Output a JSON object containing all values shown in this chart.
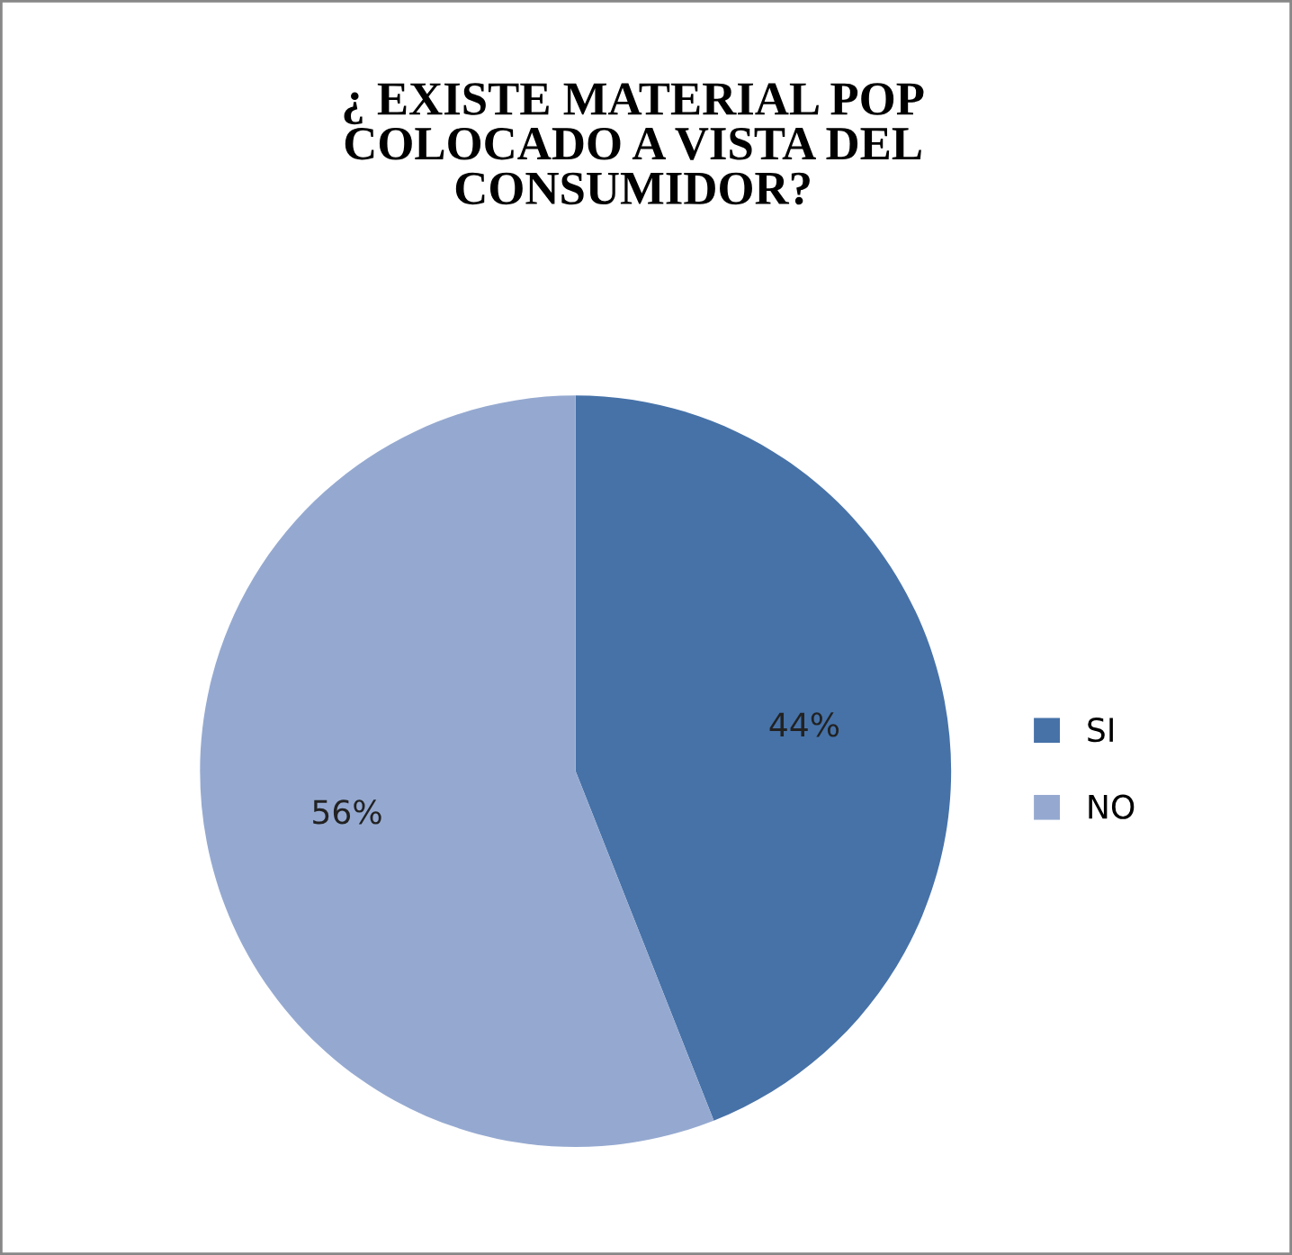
{
  "chart_data": {
    "type": "pie",
    "title": "¿ EXISTE MATERIAL POP\nCOLOCADO A VISTA DEL\nCONSUMIDOR?",
    "categories": [
      "SI",
      "NO"
    ],
    "values": [
      44,
      56
    ],
    "colors": [
      "#4672a8",
      "#95a9d0"
    ],
    "value_labels": [
      "44%",
      "56%"
    ],
    "legend": "right"
  }
}
